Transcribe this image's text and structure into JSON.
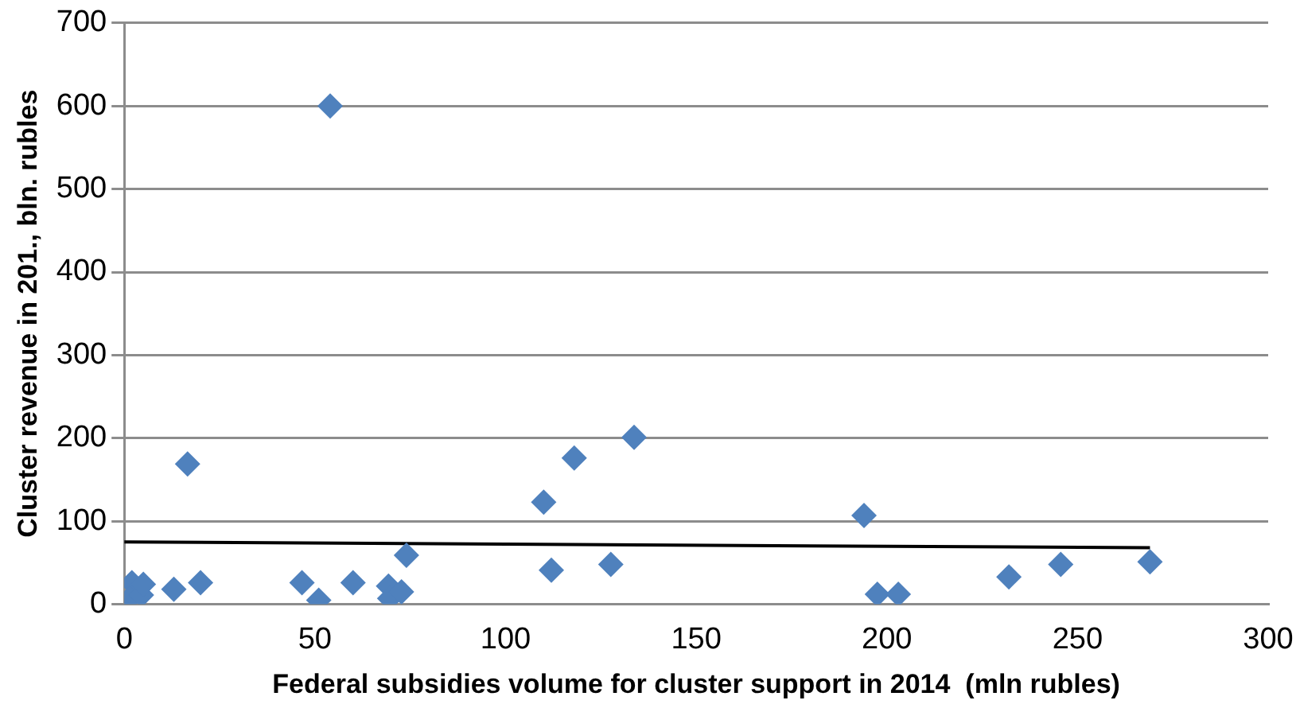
{
  "chart_data": {
    "type": "scatter",
    "xlabel": "Federal subsidies volume for cluster support in 2014  (mln rubles)",
    "ylabel": "Cluster revenue in 201., bln. rubles",
    "marker": "diamond",
    "grid": "y",
    "legend": false,
    "xlim": [
      0,
      300
    ],
    "xticks": [
      0,
      50,
      100,
      150,
      200,
      250,
      300
    ],
    "ylim": [
      0,
      700
    ],
    "yticks": [
      0,
      100,
      200,
      300,
      400,
      500,
      600,
      700
    ],
    "series": [
      {
        "type": "scatter",
        "color": "#4f81bd",
        "x": [
          54,
          16.6,
          133.7,
          118,
          110,
          194,
          112,
          127.6,
          197.5,
          203,
          232,
          245.6,
          269,
          2,
          1.4,
          4.5,
          5,
          13,
          20,
          46.6,
          51,
          60,
          69.3,
          69.6,
          72.7,
          74
        ],
        "values": [
          600,
          169,
          201,
          176,
          123,
          107,
          41,
          48,
          12,
          12,
          33,
          48,
          51,
          26,
          7,
          11,
          24,
          18,
          26,
          26,
          5,
          26,
          22,
          7,
          15,
          59
        ]
      },
      {
        "type": "line",
        "color": "#000000",
        "marker": "none",
        "x": [
          0,
          269
        ],
        "values": [
          75,
          68
        ]
      }
    ]
  }
}
